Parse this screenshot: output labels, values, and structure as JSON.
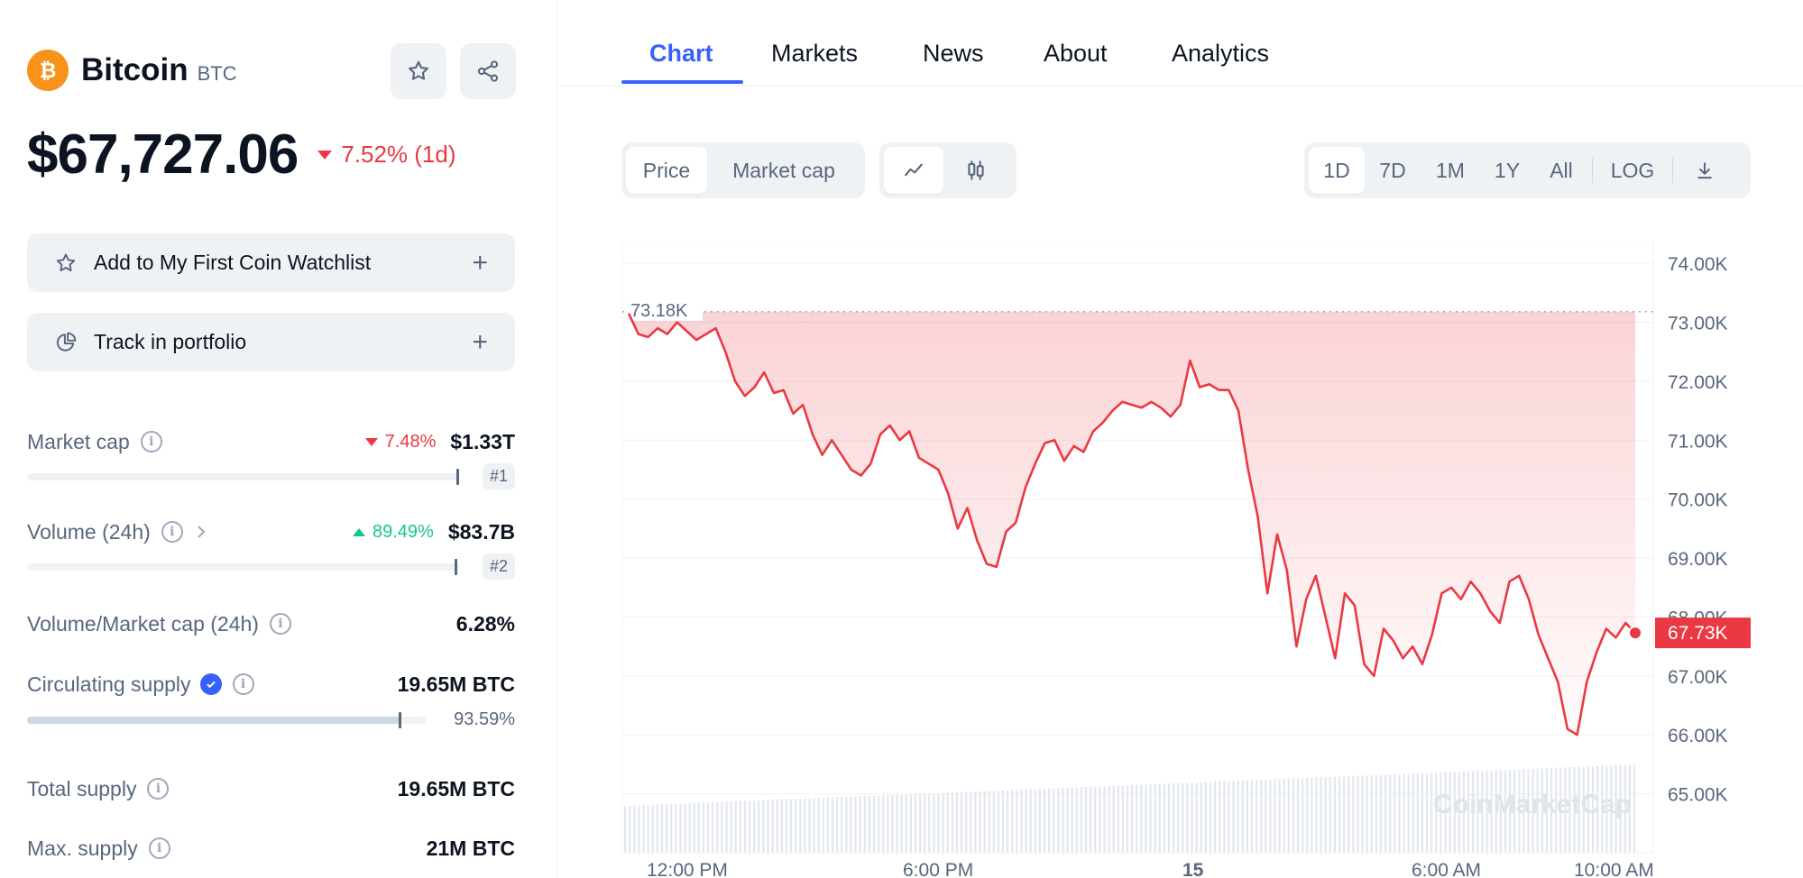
{
  "coin": {
    "name": "Bitcoin",
    "symbol": "BTC",
    "price": "$67,727.06",
    "change": "7.52% (1d)"
  },
  "actions": {
    "watchlist": "Add to My First Coin Watchlist",
    "portfolio": "Track in portfolio"
  },
  "stats": {
    "market_cap": {
      "label": "Market cap",
      "change": "7.48%",
      "value": "$1.33T",
      "rank": "#1"
    },
    "volume": {
      "label": "Volume (24h)",
      "change": "89.49%",
      "value": "$83.7B",
      "rank": "#2"
    },
    "vol_mcap": {
      "label": "Volume/Market cap (24h)",
      "value": "6.28%"
    },
    "circulating": {
      "label": "Circulating supply",
      "value": "19.65M BTC",
      "percent": "93.59%",
      "fraction": 0.9359
    },
    "total_supply": {
      "label": "Total supply",
      "value": "19.65M BTC"
    },
    "max_supply": {
      "label": "Max. supply",
      "value": "21M BTC"
    }
  },
  "tabs": [
    "Chart",
    "Markets",
    "News",
    "About",
    "Analytics"
  ],
  "controls": {
    "data_type": [
      "Price",
      "Market cap"
    ],
    "time_ranges": [
      "1D",
      "7D",
      "1M",
      "1Y",
      "All"
    ],
    "log": "LOG"
  },
  "colors": {
    "down": "#ea3943",
    "up": "#16c784",
    "accent": "#3861fb",
    "btc": "#f7931a"
  },
  "chart_data": {
    "type": "line",
    "y_ticks": [
      "74.00K",
      "73.00K",
      "72.00K",
      "71.00K",
      "70.00K",
      "69.00K",
      "68.00K",
      "67.00K",
      "66.00K",
      "65.00K"
    ],
    "y_tick_values": [
      74000,
      73000,
      72000,
      71000,
      70000,
      69000,
      68000,
      67000,
      66000,
      65000
    ],
    "x_ticks": [
      "12:00 PM",
      "6:00 PM",
      "15",
      "6:00 AM",
      "10:00 AM"
    ],
    "ylim": [
      64000,
      74400
    ],
    "open_value": 73180,
    "open_label": "73.18K",
    "current_value": 67730,
    "current_label": "67.73K",
    "watermark": "CoinMarketCap",
    "series": [
      {
        "values": [
          73150,
          72800,
          72750,
          72900,
          72800,
          73000,
          72850,
          72700,
          72800,
          72900,
          72500,
          72000,
          71750,
          71900,
          72150,
          71800,
          71850,
          71450,
          71600,
          71100,
          70750,
          71000,
          70750,
          70500,
          70400,
          70600,
          71100,
          71250,
          71000,
          71150,
          70700,
          70600,
          70500,
          70100,
          69500,
          69850,
          69300,
          68900,
          68850,
          69450,
          69600,
          70200,
          70600,
          70950,
          71000,
          70650,
          70900,
          70800,
          71150,
          71300,
          71500,
          71650,
          71600,
          71550,
          71650,
          71550,
          71400,
          71600,
          72350,
          71900,
          71950,
          71850,
          71850,
          71500,
          70500,
          69700,
          68400,
          69400,
          68800,
          67500,
          68300,
          68700,
          68000,
          67300,
          68400,
          68200,
          67200,
          67000,
          67800,
          67600,
          67300,
          67500,
          67200,
          67700,
          68400,
          68500,
          68300,
          68600,
          68400,
          68100,
          67900,
          68600,
          68700,
          68300,
          67700,
          67300,
          66900,
          66100,
          66000,
          66900,
          67400,
          67800,
          67650,
          67900,
          67730
        ]
      }
    ]
  }
}
